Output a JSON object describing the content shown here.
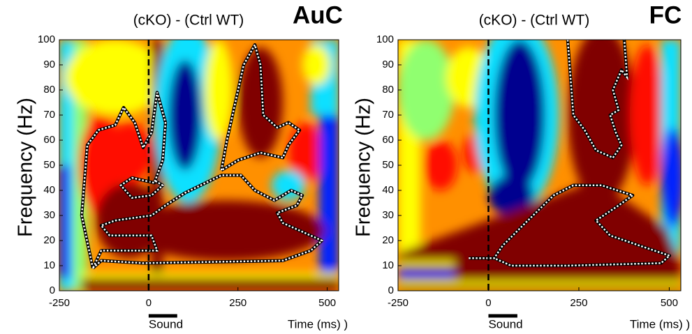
{
  "chart_data": [
    {
      "type": "heatmap",
      "subtitle": "(cKO) - (Ctrl WT)",
      "label": "AuC",
      "ylabel": "Frequency (Hz)",
      "xlabel": "Time (ms) )",
      "annotation": "Sound",
      "xlim": [
        -250,
        532
      ],
      "ylim": [
        0,
        100
      ],
      "xticks": [
        -250,
        0,
        250,
        500
      ],
      "yticks": [
        0,
        10,
        20,
        30,
        40,
        50,
        60,
        70,
        80,
        90,
        100
      ],
      "vline": 0,
      "annotation_span": [
        0,
        80
      ]
    },
    {
      "type": "heatmap",
      "subtitle": "(cKO) - (Ctrl WT)",
      "label": "FC",
      "ylabel": "Frequency (Hz)",
      "xlabel": "Time (ms) )",
      "annotation": "Sound",
      "xlim": [
        -250,
        532
      ],
      "ylim": [
        0,
        100
      ],
      "xticks": [
        -250,
        0,
        250,
        500
      ],
      "yticks": [
        0,
        10,
        20,
        30,
        40,
        50,
        60,
        70,
        80,
        90,
        100
      ],
      "vline": 0,
      "annotation_span": [
        0,
        80
      ]
    }
  ]
}
